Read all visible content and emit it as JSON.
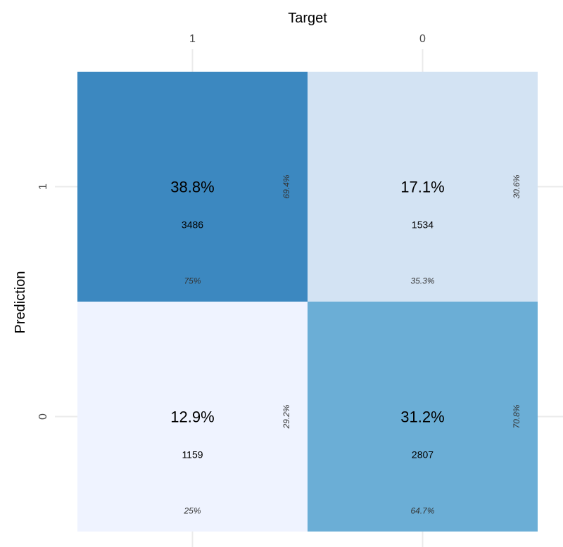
{
  "chart_data": {
    "type": "heatmap",
    "title": "",
    "xlabel": "Target",
    "ylabel": "Prediction",
    "x_categories": [
      "1",
      "0"
    ],
    "y_categories": [
      "1",
      "0"
    ],
    "x_axis_position": "top",
    "grid": true,
    "cells": [
      {
        "target": "1",
        "prediction": "1",
        "percent": "38.8%",
        "count": "3486",
        "col_percent": "75%",
        "row_percent": "69.4%",
        "color": "#3c88c0"
      },
      {
        "target": "0",
        "prediction": "1",
        "percent": "17.1%",
        "count": "1534",
        "col_percent": "35.3%",
        "row_percent": "30.6%",
        "color": "#d3e3f3"
      },
      {
        "target": "1",
        "prediction": "0",
        "percent": "12.9%",
        "count": "1159",
        "col_percent": "25%",
        "row_percent": "29.2%",
        "color": "#eff3ff"
      },
      {
        "target": "0",
        "prediction": "0",
        "percent": "31.2%",
        "count": "2807",
        "col_percent": "64.7%",
        "row_percent": "70.8%",
        "color": "#6baed6"
      }
    ]
  }
}
